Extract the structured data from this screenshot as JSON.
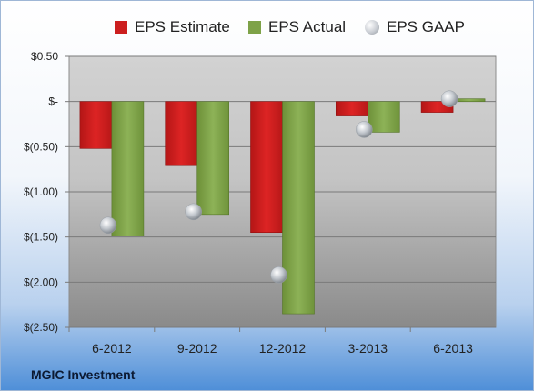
{
  "footer": {
    "company": "MGIC Investment"
  },
  "chart_data": {
    "type": "bar",
    "categories": [
      "6-2012",
      "9-2012",
      "12-2012",
      "3-2013",
      "6-2013"
    ],
    "series": [
      {
        "name": "EPS Estimate",
        "values": [
          -0.52,
          -0.71,
          -1.45,
          -0.16,
          -0.12
        ],
        "color": "#cc1f1f"
      },
      {
        "name": "EPS Actual",
        "values": [
          -1.49,
          -1.25,
          -2.35,
          -0.34,
          0.03
        ],
        "color": "#7ea248"
      },
      {
        "name": "EPS GAAP",
        "values": [
          -1.37,
          -1.22,
          -1.92,
          -0.31,
          0.03
        ],
        "marker": "circle",
        "color": "#c3c8ce"
      }
    ],
    "ylim": [
      -2.5,
      0.5
    ],
    "yticks": [
      0.5,
      0,
      -0.5,
      -1.0,
      -1.5,
      -2.0,
      -2.5
    ],
    "ytick_labels": [
      "$0.50",
      "$-",
      "$(0.50)",
      "$(1.00)",
      "$(1.50)",
      "$(2.00)",
      "$(2.50)"
    ],
    "grid": true,
    "legend": "top"
  }
}
